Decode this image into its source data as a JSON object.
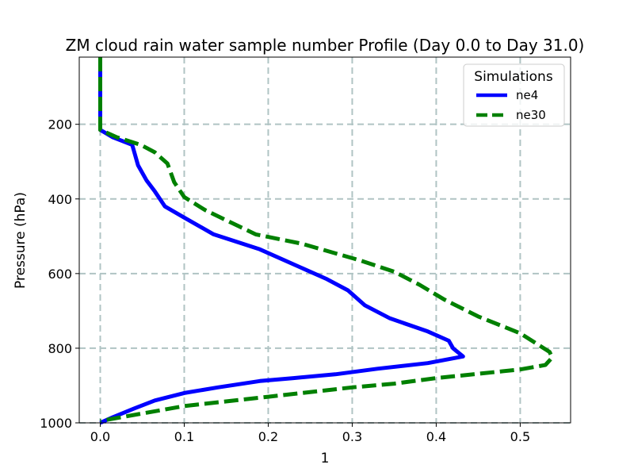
{
  "chart_data": {
    "type": "line",
    "title": "ZM cloud rain water sample number Profile (Day 0.0 to Day 31.0)",
    "xlabel": "1",
    "ylabel": "Pressure (hPa)",
    "xlim": [
      -0.025,
      0.56
    ],
    "ylim": [
      1000,
      20
    ],
    "y_inverted": true,
    "grid": true,
    "xticks": [
      0.0,
      0.1,
      0.2,
      0.3,
      0.4,
      0.5
    ],
    "xtick_labels": [
      "0.0",
      "0.1",
      "0.2",
      "0.3",
      "0.4",
      "0.5"
    ],
    "yticks": [
      200,
      400,
      600,
      800,
      1000
    ],
    "ytick_labels": [
      "200",
      "400",
      "600",
      "800",
      "1000"
    ],
    "legend": {
      "title": "Simulations",
      "position": "top-right",
      "entries": [
        "ne4",
        "ne30"
      ]
    },
    "series": [
      {
        "name": "ne4",
        "color": "#0000ff",
        "style": "solid",
        "points": [
          [
            0.0,
            20
          ],
          [
            0.0,
            100
          ],
          [
            0.0,
            200
          ],
          [
            0.0,
            215
          ],
          [
            0.015,
            235
          ],
          [
            0.038,
            255
          ],
          [
            0.045,
            310
          ],
          [
            0.055,
            350
          ],
          [
            0.065,
            380
          ],
          [
            0.077,
            420
          ],
          [
            0.1,
            450
          ],
          [
            0.135,
            495
          ],
          [
            0.19,
            535
          ],
          [
            0.23,
            575
          ],
          [
            0.27,
            615
          ],
          [
            0.295,
            645
          ],
          [
            0.315,
            685
          ],
          [
            0.345,
            720
          ],
          [
            0.39,
            755
          ],
          [
            0.415,
            780
          ],
          [
            0.42,
            800
          ],
          [
            0.432,
            822
          ],
          [
            0.39,
            840
          ],
          [
            0.33,
            855
          ],
          [
            0.28,
            870
          ],
          [
            0.23,
            880
          ],
          [
            0.19,
            888
          ],
          [
            0.14,
            905
          ],
          [
            0.1,
            920
          ],
          [
            0.065,
            940
          ],
          [
            0.04,
            962
          ],
          [
            0.015,
            985
          ],
          [
            0.0,
            1000
          ]
        ]
      },
      {
        "name": "ne30",
        "color": "#008000",
        "style": "dashed",
        "points": [
          [
            0.0,
            20
          ],
          [
            0.0,
            100
          ],
          [
            0.0,
            200
          ],
          [
            0.0,
            215
          ],
          [
            0.02,
            235
          ],
          [
            0.048,
            255
          ],
          [
            0.065,
            275
          ],
          [
            0.08,
            305
          ],
          [
            0.088,
            355
          ],
          [
            0.1,
            395
          ],
          [
            0.125,
            430
          ],
          [
            0.185,
            495
          ],
          [
            0.24,
            520
          ],
          [
            0.31,
            565
          ],
          [
            0.35,
            595
          ],
          [
            0.38,
            630
          ],
          [
            0.41,
            670
          ],
          [
            0.45,
            715
          ],
          [
            0.5,
            760
          ],
          [
            0.535,
            810
          ],
          [
            0.538,
            825
          ],
          [
            0.53,
            845
          ],
          [
            0.5,
            857
          ],
          [
            0.4,
            880
          ],
          [
            0.35,
            895
          ],
          [
            0.3,
            905
          ],
          [
            0.2,
            930
          ],
          [
            0.1,
            955
          ],
          [
            0.05,
            975
          ],
          [
            0.0,
            995
          ]
        ]
      }
    ]
  }
}
